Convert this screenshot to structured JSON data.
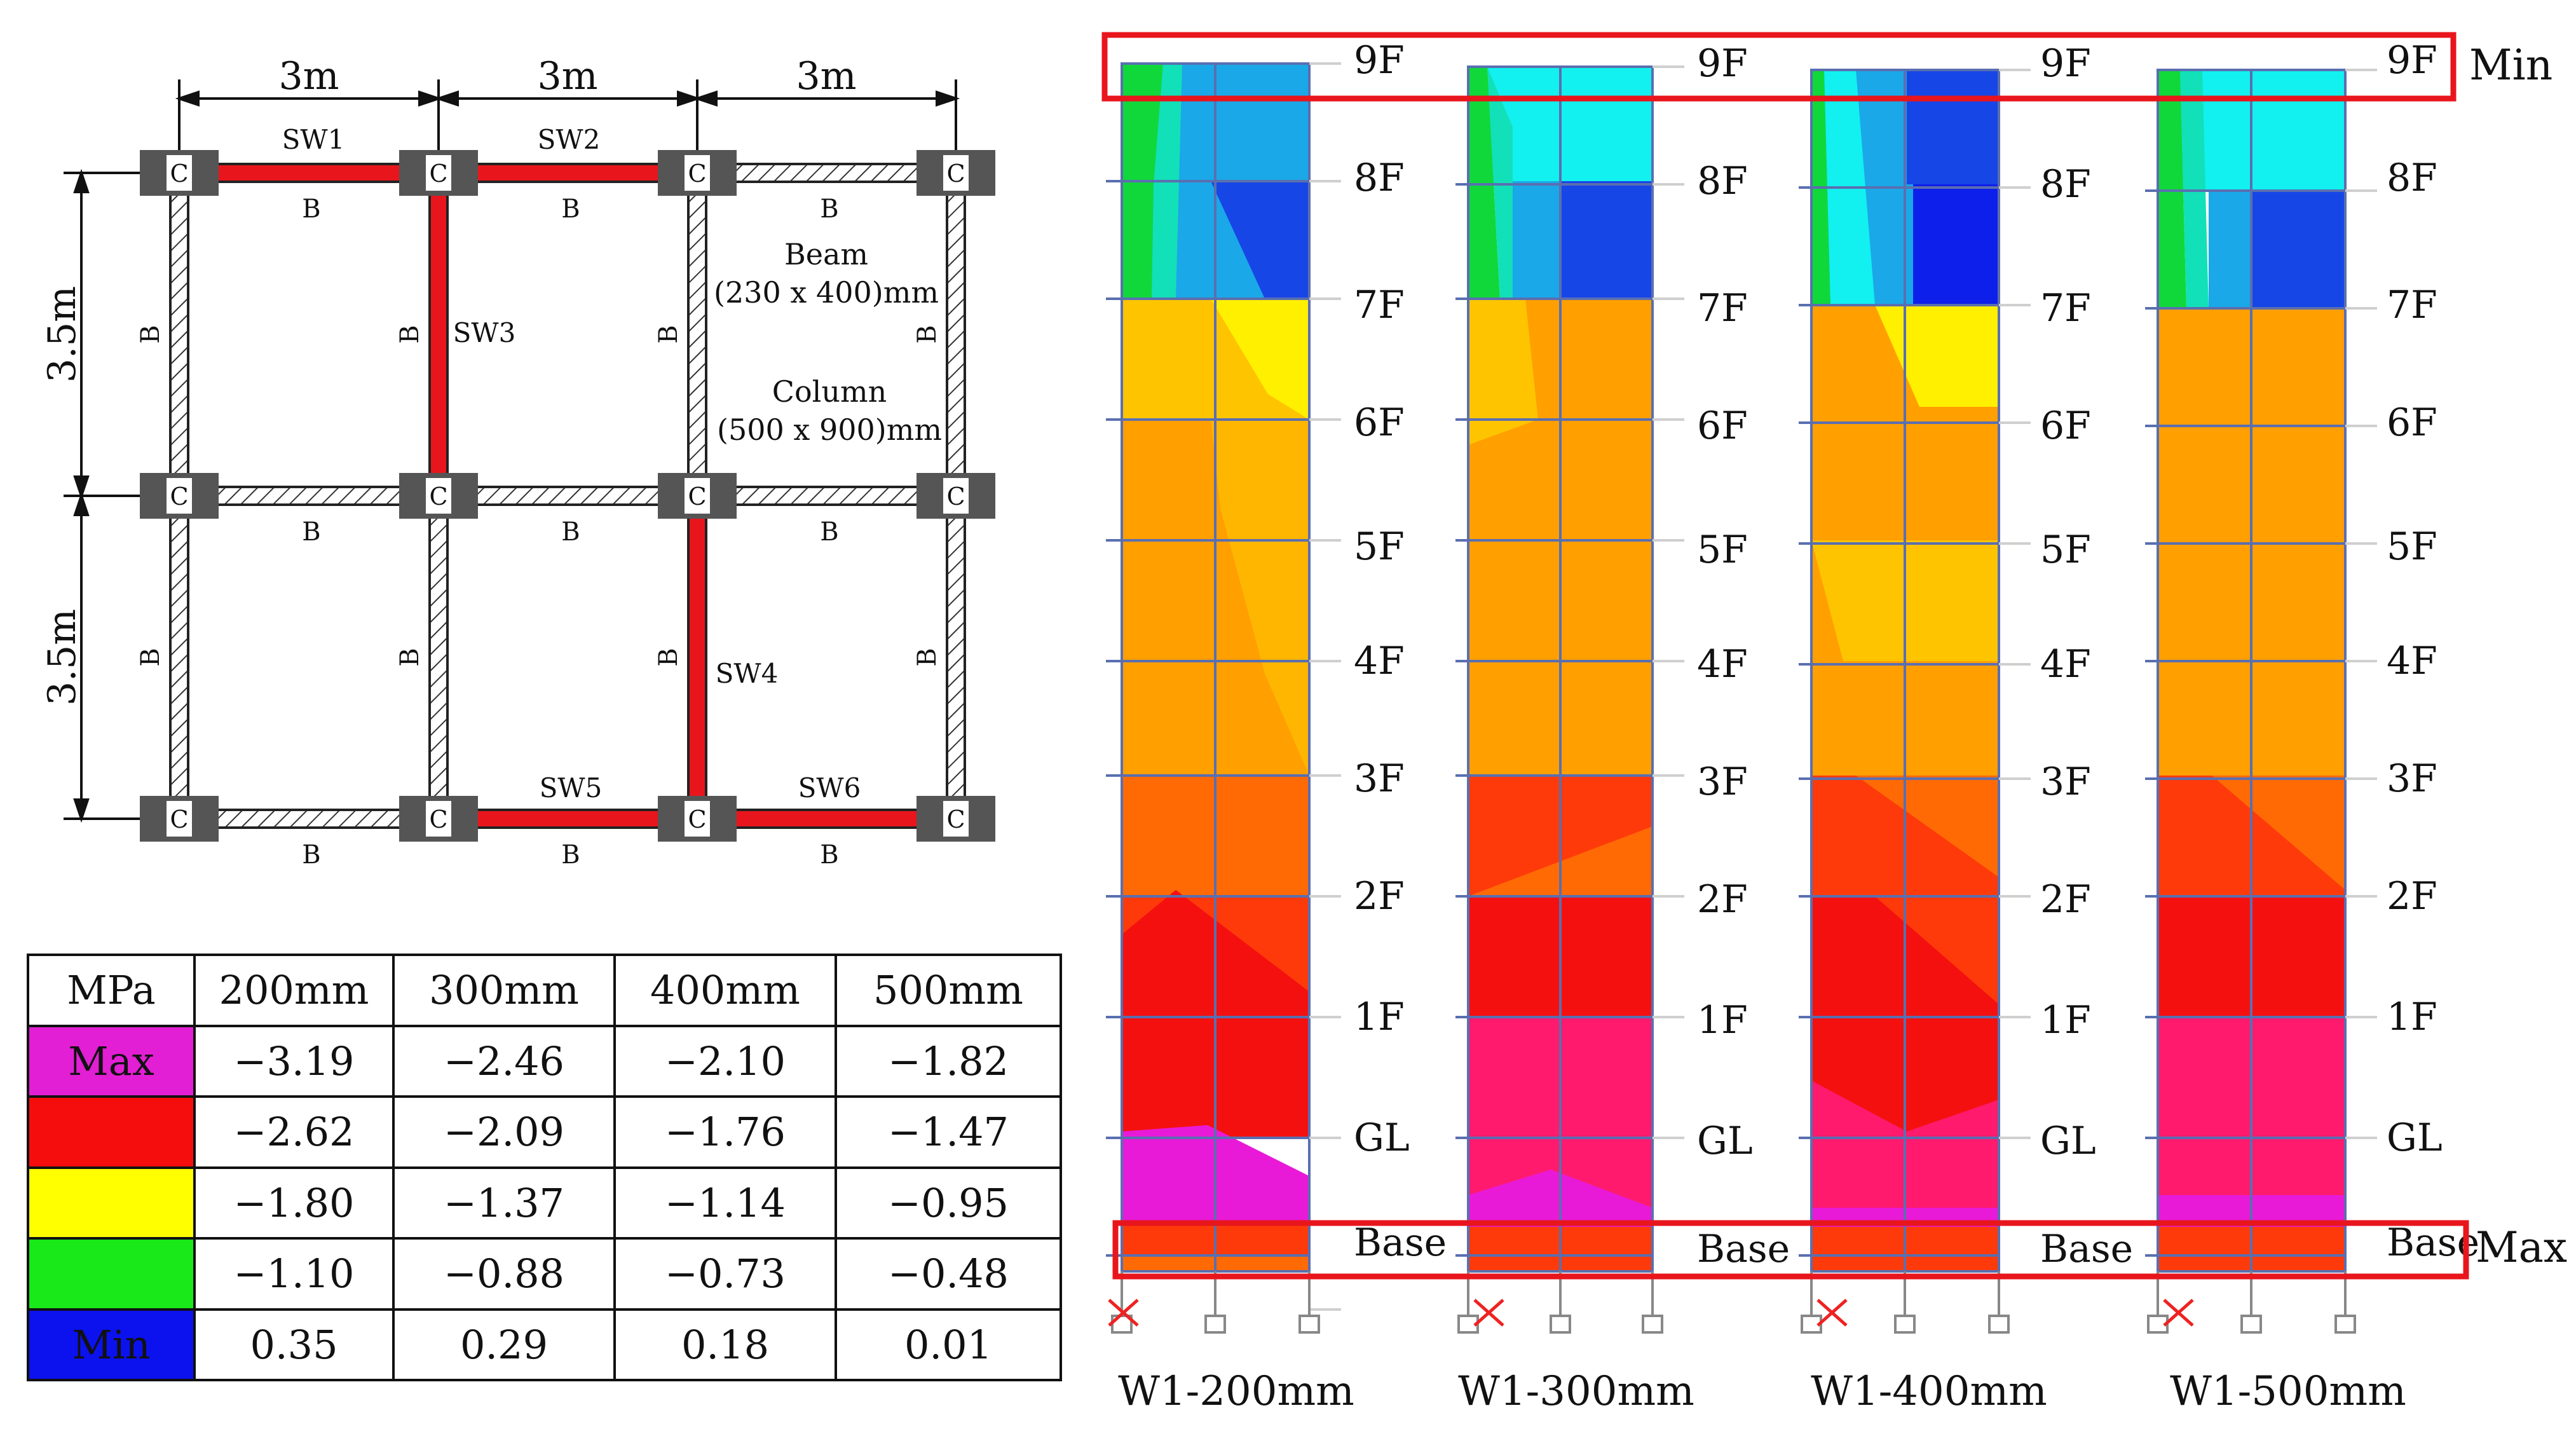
{
  "plan": {
    "spans_x": [
      "3m",
      "3m",
      "3m"
    ],
    "spans_y": [
      "3.5m",
      "3.5m"
    ],
    "column_mark": "C",
    "beam_mark": "B",
    "walls": [
      "SW1",
      "SW2",
      "SW3",
      "SW4",
      "SW5",
      "SW6"
    ],
    "beam_label": "Beam",
    "beam_size": "(230 x 400)mm",
    "column_label": "Column",
    "column_size": "(500 x 900)mm",
    "wall_color": "#e8161c"
  },
  "legend_table": {
    "header": [
      "MPa",
      "200mm",
      "300mm",
      "400mm",
      "500mm"
    ],
    "rows": [
      {
        "label": "Max",
        "color": "#e21fd4",
        "values": [
          "−3.19",
          "−2.46",
          "−2.10",
          "−1.82"
        ]
      },
      {
        "label": "",
        "color": "#f50d0d",
        "values": [
          "−2.62",
          "−2.09",
          "−1.76",
          "−1.47"
        ]
      },
      {
        "label": "",
        "color": "#ffff00",
        "values": [
          "−1.80",
          "−1.37",
          "−1.14",
          "−0.95"
        ]
      },
      {
        "label": "",
        "color": "#19e819",
        "values": [
          "−1.10",
          "−0.88",
          "−0.73",
          "−0.48"
        ]
      },
      {
        "label": "Min",
        "color": "#0b12ee",
        "values": [
          "0.35",
          "0.29",
          "0.18",
          "0.01"
        ]
      }
    ]
  },
  "elevations": {
    "floor_labels": [
      "9F",
      "8F",
      "7F",
      "6F",
      "5F",
      "4F",
      "3F",
      "2F",
      "1F",
      "GL",
      "Base"
    ],
    "walls": [
      {
        "name": "W1-200mm",
        "stress_bands": [
          "green-blue",
          "green-blue",
          "yellow",
          "orange",
          "orange",
          "orange",
          "orange",
          "red",
          "red",
          "red",
          "magenta"
        ]
      },
      {
        "name": "W1-300mm",
        "stress_bands": [
          "cyan",
          "blue",
          "orange",
          "orange",
          "orange",
          "orange",
          "red",
          "red",
          "pink",
          "pink",
          "magenta"
        ]
      },
      {
        "name": "W1-400mm",
        "stress_bands": [
          "cyan-blue",
          "blue",
          "yellow",
          "orange",
          "yellow-orange",
          "orange",
          "orange",
          "red",
          "red",
          "pink",
          "magenta"
        ]
      },
      {
        "name": "W1-500mm",
        "stress_bands": [
          "green-cyan",
          "blue",
          "orange",
          "orange",
          "orange",
          "orange",
          "orange",
          "red",
          "red",
          "pink",
          "magenta"
        ]
      }
    ],
    "min_label": "Min",
    "max_label": "Max",
    "highlight_color": "#e8161c"
  },
  "colors": {
    "magenta": "#e81ad8",
    "pink": "#ff1a6e",
    "red": "#f51010",
    "red_orange": "#ff3a0a",
    "orange_red": "#ff6a05",
    "orange": "#ff9f00",
    "yellow_orange": "#ffc400",
    "yellow": "#fff000",
    "green": "#10d83a",
    "cyan": "#12f0f0",
    "light_blue": "#1aa8e8",
    "blue": "#1746e6",
    "deep_blue": "#0d1fea"
  }
}
